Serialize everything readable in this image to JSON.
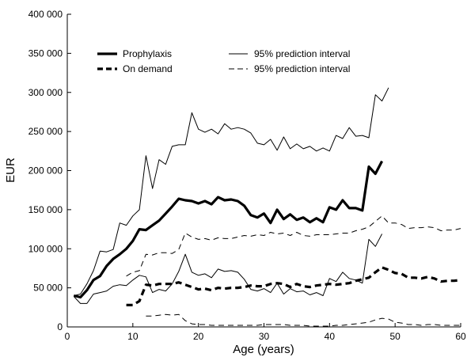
{
  "chart_data": {
    "type": "line",
    "xlabel": "Age (years)",
    "ylabel": "EUR",
    "xlim": [
      0,
      60
    ],
    "ylim": [
      0,
      400000
    ],
    "x_ticks": [
      0,
      10,
      20,
      30,
      40,
      50,
      60
    ],
    "x_tick_labels": [
      "0",
      "10",
      "20",
      "30",
      "40",
      "50",
      "60"
    ],
    "y_ticks": [
      0,
      50000,
      100000,
      150000,
      200000,
      250000,
      300000,
      350000,
      400000
    ],
    "y_tick_labels": [
      "0",
      "50 000",
      "100 000",
      "150 000",
      "200 000",
      "250 000",
      "300 000",
      "350 000",
      "400 000"
    ],
    "grid": false,
    "legend_position": "top-left",
    "legend": [
      {
        "label": "Prophylaxis",
        "series": "prophylaxis"
      },
      {
        "label": "95% prediction interval",
        "series": "prophylaxis_upper"
      },
      {
        "label": "On demand",
        "series": "on_demand"
      },
      {
        "label": "95% prediction interval",
        "series": "on_demand_upper"
      }
    ],
    "series": [
      {
        "key": "prophylaxis",
        "label": "Prophylaxis",
        "style": "solid",
        "weight": "thick",
        "color": "#000000",
        "points": [
          [
            1,
            40000
          ],
          [
            2,
            38000
          ],
          [
            3,
            47000
          ],
          [
            4,
            60000
          ],
          [
            5,
            65000
          ],
          [
            6,
            78000
          ],
          [
            7,
            87000
          ],
          [
            8,
            93000
          ],
          [
            9,
            100000
          ],
          [
            10,
            110000
          ],
          [
            11,
            125000
          ],
          [
            12,
            124000
          ],
          [
            13,
            130000
          ],
          [
            14,
            136000
          ],
          [
            15,
            145000
          ],
          [
            16,
            154000
          ],
          [
            17,
            164000
          ],
          [
            18,
            162000
          ],
          [
            19,
            161000
          ],
          [
            20,
            158000
          ],
          [
            21,
            161000
          ],
          [
            22,
            157000
          ],
          [
            23,
            166000
          ],
          [
            24,
            162000
          ],
          [
            25,
            163000
          ],
          [
            26,
            161000
          ],
          [
            27,
            155000
          ],
          [
            28,
            143000
          ],
          [
            29,
            140000
          ],
          [
            30,
            145000
          ],
          [
            31,
            133000
          ],
          [
            32,
            150000
          ],
          [
            33,
            138000
          ],
          [
            34,
            144000
          ],
          [
            35,
            137000
          ],
          [
            36,
            140000
          ],
          [
            37,
            134000
          ],
          [
            38,
            139000
          ],
          [
            39,
            134000
          ],
          [
            40,
            153000
          ],
          [
            41,
            150000
          ],
          [
            42,
            162000
          ],
          [
            43,
            152000
          ],
          [
            44,
            152000
          ],
          [
            45,
            149000
          ],
          [
            46,
            205000
          ],
          [
            47,
            196000
          ],
          [
            48,
            212000
          ]
        ]
      },
      {
        "key": "prophylaxis_upper",
        "label": "95% prediction interval",
        "style": "solid",
        "weight": "thin",
        "color": "#000000",
        "points": [
          [
            1,
            40000
          ],
          [
            2,
            42000
          ],
          [
            3,
            55000
          ],
          [
            4,
            72000
          ],
          [
            5,
            97000
          ],
          [
            6,
            96000
          ],
          [
            7,
            99000
          ],
          [
            8,
            133000
          ],
          [
            9,
            130000
          ],
          [
            10,
            142000
          ],
          [
            11,
            150000
          ],
          [
            12,
            219000
          ],
          [
            13,
            177000
          ],
          [
            14,
            214000
          ],
          [
            15,
            208000
          ],
          [
            16,
            231000
          ],
          [
            17,
            233000
          ],
          [
            18,
            233000
          ],
          [
            19,
            274000
          ],
          [
            20,
            253000
          ],
          [
            21,
            249000
          ],
          [
            22,
            253000
          ],
          [
            23,
            247000
          ],
          [
            24,
            260000
          ],
          [
            25,
            253000
          ],
          [
            26,
            255000
          ],
          [
            27,
            253000
          ],
          [
            28,
            248000
          ],
          [
            29,
            235000
          ],
          [
            30,
            233000
          ],
          [
            31,
            240000
          ],
          [
            32,
            226000
          ],
          [
            33,
            243000
          ],
          [
            34,
            228000
          ],
          [
            35,
            234000
          ],
          [
            36,
            228000
          ],
          [
            37,
            231000
          ],
          [
            38,
            225000
          ],
          [
            39,
            229000
          ],
          [
            40,
            225000
          ],
          [
            41,
            245000
          ],
          [
            42,
            241000
          ],
          [
            43,
            255000
          ],
          [
            44,
            244000
          ],
          [
            45,
            245000
          ],
          [
            46,
            242000
          ],
          [
            47,
            297000
          ],
          [
            48,
            289000
          ],
          [
            49,
            306000
          ]
        ]
      },
      {
        "key": "prophylaxis_lower",
        "label": "",
        "style": "solid",
        "weight": "thin",
        "color": "#000000",
        "points": [
          [
            1,
            39000
          ],
          [
            2,
            30000
          ],
          [
            3,
            30000
          ],
          [
            4,
            42000
          ],
          [
            5,
            44000
          ],
          [
            6,
            46000
          ],
          [
            7,
            52000
          ],
          [
            8,
            54000
          ],
          [
            9,
            53000
          ],
          [
            10,
            60000
          ],
          [
            11,
            66000
          ],
          [
            12,
            64000
          ],
          [
            13,
            44000
          ],
          [
            14,
            48000
          ],
          [
            15,
            46000
          ],
          [
            16,
            55000
          ],
          [
            17,
            71000
          ],
          [
            18,
            93000
          ],
          [
            19,
            70000
          ],
          [
            20,
            66000
          ],
          [
            21,
            68000
          ],
          [
            22,
            63000
          ],
          [
            23,
            74000
          ],
          [
            24,
            71000
          ],
          [
            25,
            72000
          ],
          [
            26,
            70000
          ],
          [
            27,
            61000
          ],
          [
            28,
            48000
          ],
          [
            29,
            46000
          ],
          [
            30,
            49000
          ],
          [
            31,
            44000
          ],
          [
            32,
            56000
          ],
          [
            33,
            42000
          ],
          [
            34,
            49000
          ],
          [
            35,
            45000
          ],
          [
            36,
            46000
          ],
          [
            37,
            41000
          ],
          [
            38,
            44000
          ],
          [
            39,
            40000
          ],
          [
            40,
            62000
          ],
          [
            41,
            58000
          ],
          [
            42,
            70000
          ],
          [
            43,
            62000
          ],
          [
            44,
            60000
          ],
          [
            45,
            56000
          ],
          [
            46,
            112000
          ],
          [
            47,
            103000
          ],
          [
            48,
            119000
          ]
        ]
      },
      {
        "key": "on_demand",
        "label": "On demand",
        "style": "dashed",
        "weight": "thick",
        "color": "#000000",
        "points": [
          [
            9,
            28000
          ],
          [
            10,
            28000
          ],
          [
            11,
            33000
          ],
          [
            12,
            54000
          ],
          [
            13,
            53000
          ],
          [
            14,
            55000
          ],
          [
            15,
            55000
          ],
          [
            16,
            55000
          ],
          [
            17,
            57000
          ],
          [
            18,
            54000
          ],
          [
            19,
            51000
          ],
          [
            20,
            48000
          ],
          [
            21,
            49000
          ],
          [
            22,
            47000
          ],
          [
            23,
            50000
          ],
          [
            24,
            49000
          ],
          [
            25,
            50000
          ],
          [
            26,
            50000
          ],
          [
            27,
            51000
          ],
          [
            28,
            53000
          ],
          [
            29,
            52000
          ],
          [
            30,
            52000
          ],
          [
            31,
            55000
          ],
          [
            32,
            56000
          ],
          [
            33,
            55000
          ],
          [
            34,
            51000
          ],
          [
            35,
            55000
          ],
          [
            36,
            52000
          ],
          [
            37,
            51000
          ],
          [
            38,
            53000
          ],
          [
            39,
            54000
          ],
          [
            40,
            55000
          ],
          [
            41,
            54000
          ],
          [
            42,
            55000
          ],
          [
            43,
            56000
          ],
          [
            44,
            59000
          ],
          [
            45,
            61000
          ],
          [
            46,
            63000
          ],
          [
            47,
            70000
          ],
          [
            48,
            76000
          ],
          [
            49,
            73000
          ],
          [
            50,
            69000
          ],
          [
            51,
            68000
          ],
          [
            52,
            63000
          ],
          [
            53,
            63000
          ],
          [
            54,
            62000
          ],
          [
            55,
            64000
          ],
          [
            56,
            62000
          ],
          [
            57,
            58000
          ],
          [
            58,
            59000
          ],
          [
            59,
            59000
          ],
          [
            60,
            60000
          ]
        ]
      },
      {
        "key": "on_demand_upper",
        "label": "95% prediction interval",
        "style": "dashed",
        "weight": "thin",
        "color": "#000000",
        "points": [
          [
            9,
            65000
          ],
          [
            10,
            70000
          ],
          [
            11,
            72000
          ],
          [
            12,
            93000
          ],
          [
            13,
            92000
          ],
          [
            14,
            95000
          ],
          [
            15,
            95000
          ],
          [
            16,
            94000
          ],
          [
            17,
            99000
          ],
          [
            18,
            120000
          ],
          [
            19,
            115000
          ],
          [
            20,
            112000
          ],
          [
            21,
            113000
          ],
          [
            22,
            111000
          ],
          [
            23,
            114000
          ],
          [
            24,
            113000
          ],
          [
            25,
            113000
          ],
          [
            26,
            115000
          ],
          [
            27,
            117000
          ],
          [
            28,
            116000
          ],
          [
            29,
            118000
          ],
          [
            30,
            117000
          ],
          [
            31,
            121000
          ],
          [
            32,
            119000
          ],
          [
            33,
            120000
          ],
          [
            34,
            117000
          ],
          [
            35,
            121000
          ],
          [
            36,
            117000
          ],
          [
            37,
            116000
          ],
          [
            38,
            118000
          ],
          [
            39,
            118000
          ],
          [
            40,
            118000
          ],
          [
            41,
            119000
          ],
          [
            42,
            120000
          ],
          [
            43,
            120000
          ],
          [
            44,
            123000
          ],
          [
            45,
            125000
          ],
          [
            46,
            128000
          ],
          [
            47,
            135000
          ],
          [
            48,
            142000
          ],
          [
            49,
            133000
          ],
          [
            50,
            133000
          ],
          [
            51,
            131000
          ],
          [
            52,
            126000
          ],
          [
            53,
            127000
          ],
          [
            54,
            127000
          ],
          [
            55,
            128000
          ],
          [
            56,
            127000
          ],
          [
            57,
            123000
          ],
          [
            58,
            124000
          ],
          [
            59,
            124000
          ],
          [
            60,
            126000
          ]
        ]
      },
      {
        "key": "on_demand_lower",
        "label": "",
        "style": "dashed",
        "weight": "thin",
        "color": "#000000",
        "points": [
          [
            12,
            14000
          ],
          [
            13,
            14000
          ],
          [
            14,
            15000
          ],
          [
            15,
            16000
          ],
          [
            16,
            15000
          ],
          [
            17,
            16000
          ],
          [
            18,
            8000
          ],
          [
            19,
            4000
          ],
          [
            20,
            3000
          ],
          [
            21,
            3000
          ],
          [
            22,
            2000
          ],
          [
            23,
            2000
          ],
          [
            24,
            2000
          ],
          [
            25,
            2000
          ],
          [
            26,
            2000
          ],
          [
            27,
            2000
          ],
          [
            28,
            2000
          ],
          [
            29,
            2000
          ],
          [
            30,
            3000
          ],
          [
            31,
            3000
          ],
          [
            32,
            3000
          ],
          [
            33,
            3000
          ],
          [
            34,
            2000
          ],
          [
            35,
            2000
          ],
          [
            36,
            2000
          ],
          [
            37,
            1000
          ],
          [
            38,
            1000
          ],
          [
            39,
            1000
          ],
          [
            40,
            1000
          ],
          [
            41,
            2000
          ],
          [
            42,
            2000
          ],
          [
            43,
            3000
          ],
          [
            44,
            4000
          ],
          [
            45,
            5000
          ],
          [
            46,
            6000
          ],
          [
            47,
            9000
          ],
          [
            48,
            11000
          ],
          [
            49,
            10000
          ],
          [
            50,
            6000
          ],
          [
            51,
            5000
          ],
          [
            52,
            3000
          ],
          [
            53,
            3000
          ],
          [
            54,
            2000
          ],
          [
            55,
            3000
          ],
          [
            56,
            3000
          ],
          [
            57,
            2000
          ],
          [
            58,
            2000
          ],
          [
            59,
            2000
          ],
          [
            60,
            2000
          ]
        ]
      }
    ]
  }
}
